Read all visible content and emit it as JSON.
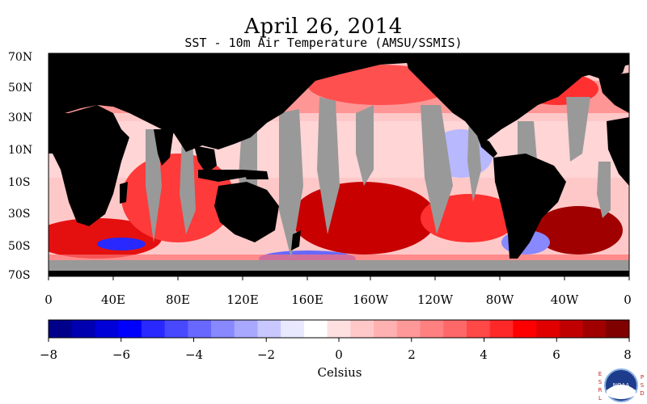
{
  "header": {
    "title": "April 26, 2014",
    "subtitle": "SST - 10m Air Temperature (AMSU/SSMIS)"
  },
  "map": {
    "lat_labels": [
      "70N",
      "50N",
      "30N",
      "10N",
      "10S",
      "30S",
      "50S",
      "70S"
    ],
    "lon_labels": [
      "0",
      "40E",
      "80E",
      "120E",
      "160E",
      "160W",
      "120W",
      "80W",
      "40W",
      "0"
    ],
    "colors": {
      "land": "#000000",
      "missing": "#999999",
      "strong_warm": "#c00000",
      "warm": "#ff3030",
      "mild_warm": "#ffb0b0",
      "mild_cool": "#b8b8ff",
      "cool": "#3030ff"
    }
  },
  "colorbar": {
    "ticks": [
      "−8",
      "−6",
      "−4",
      "−2",
      "0",
      "2",
      "4",
      "6",
      "8"
    ],
    "unit_label": "Celsius",
    "colors": [
      "#00008b",
      "#0000b0",
      "#0000d8",
      "#0000ff",
      "#2828ff",
      "#4848ff",
      "#6868ff",
      "#8888ff",
      "#a8a8ff",
      "#c8c8ff",
      "#e8e8ff",
      "#ffffff",
      "#ffe0e0",
      "#ffc8c8",
      "#ffb0b0",
      "#ff9898",
      "#ff8080",
      "#ff6868",
      "#ff4848",
      "#ff2828",
      "#ff0000",
      "#e00000",
      "#c00000",
      "#a00000",
      "#800000"
    ]
  },
  "logo": {
    "left_text": [
      "E",
      "S",
      "R",
      "L"
    ],
    "right_text": [
      "P",
      "S",
      "D"
    ],
    "center_text": "NOAA"
  }
}
